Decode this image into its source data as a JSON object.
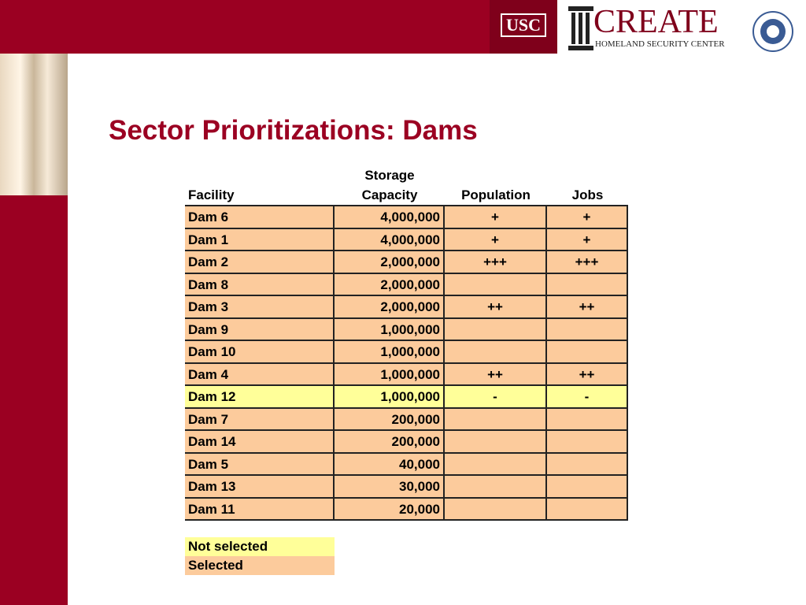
{
  "header": {
    "usc": "USC",
    "create": "CREATE",
    "center": "HOMELAND SECURITY CENTER"
  },
  "title": "Sector Prioritizations: Dams",
  "table": {
    "headers": [
      [
        "Facility"
      ],
      [
        "Storage",
        "Capacity"
      ],
      [
        "Population"
      ],
      [
        "Jobs"
      ]
    ],
    "rows": [
      {
        "cells": [
          "Dam 6",
          "4,000,000",
          "+",
          "+"
        ],
        "color": "#fccb9c"
      },
      {
        "cells": [
          "Dam 1",
          "4,000,000",
          "+",
          "+"
        ],
        "color": "#fccb9c"
      },
      {
        "cells": [
          "Dam 2",
          "2,000,000",
          "+++",
          "+++"
        ],
        "color": "#fccb9c"
      },
      {
        "cells": [
          "Dam 8",
          "2,000,000",
          null,
          null
        ],
        "color": "#fccb9c"
      },
      {
        "cells": [
          "Dam 3",
          "2,000,000",
          "++",
          "++"
        ],
        "color": "#fccb9c"
      },
      {
        "cells": [
          "Dam 9",
          "1,000,000",
          null,
          null
        ],
        "color": "#fccb9c"
      },
      {
        "cells": [
          "Dam 10",
          "1,000,000",
          null,
          null
        ],
        "color": "#fccb9c"
      },
      {
        "cells": [
          "Dam 4",
          "1,000,000",
          "++",
          "++"
        ],
        "color": "#fccb9c"
      },
      {
        "cells": [
          "Dam 12",
          "1,000,000",
          "-",
          "-"
        ],
        "color": "#ffff99"
      },
      {
        "cells": [
          "Dam 7",
          "200,000",
          null,
          null
        ],
        "color": "#fccb9c"
      },
      {
        "cells": [
          "Dam 14",
          "200,000",
          null,
          null
        ],
        "color": "#fccb9c"
      },
      {
        "cells": [
          "Dam 5",
          "40,000",
          null,
          null
        ],
        "color": "#fccb9c"
      },
      {
        "cells": [
          "Dam 13",
          "30,000",
          null,
          null
        ],
        "color": "#fccb9c"
      },
      {
        "cells": [
          "Dam 11",
          "20,000",
          null,
          null
        ],
        "color": "#fccb9c"
      }
    ]
  },
  "legend": [
    {
      "label": "Not selected",
      "color": "#ffff99"
    },
    {
      "label": "Selected",
      "color": "#fccb9c"
    }
  ]
}
